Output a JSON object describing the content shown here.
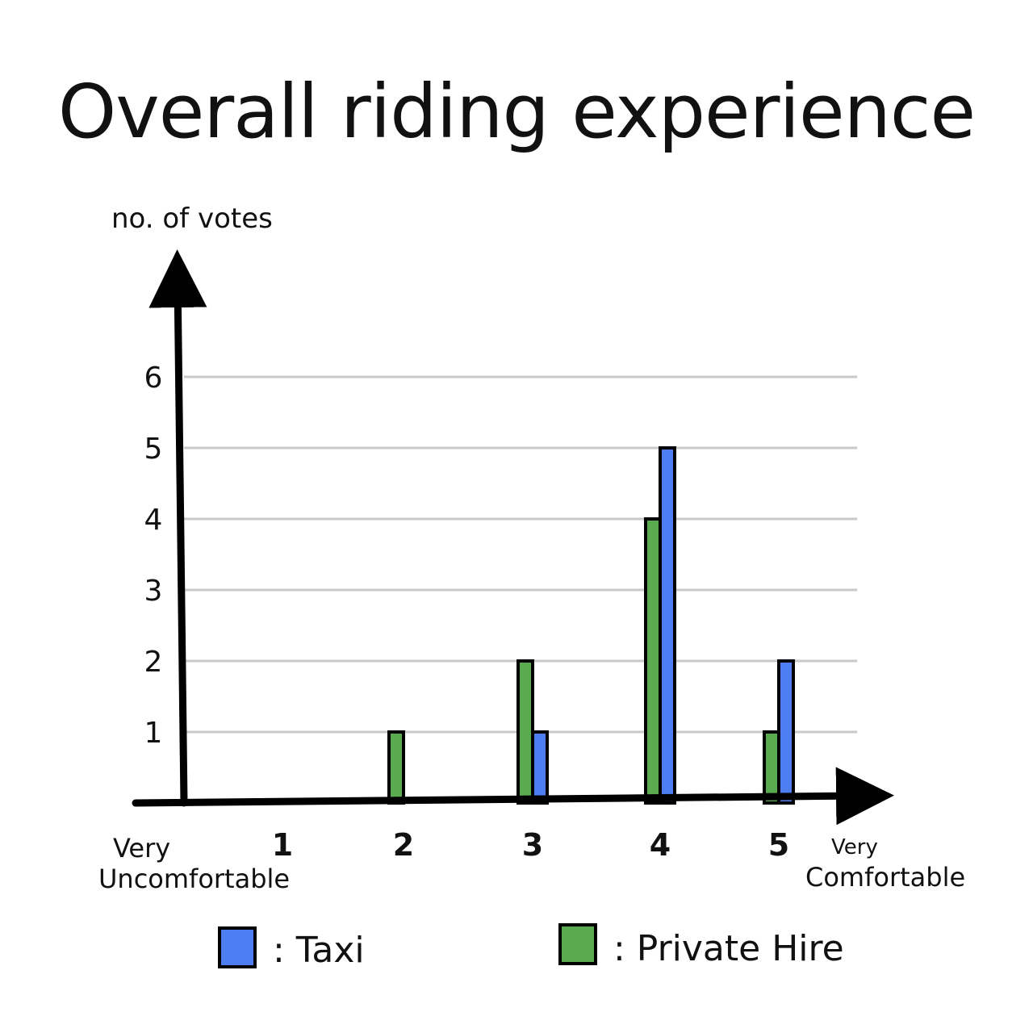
{
  "chart_data": {
    "type": "bar",
    "title": "Overall riding experience",
    "ylabel": "no. of votes",
    "categories": [
      "1",
      "2",
      "3",
      "4",
      "5"
    ],
    "x_end_labels": {
      "left": [
        "Very",
        "Uncomfortable"
      ],
      "right": [
        "Very",
        "Comfortable"
      ]
    },
    "yticks": [
      1,
      2,
      3,
      4,
      5,
      6
    ],
    "ylim": [
      0,
      6.2
    ],
    "grid": true,
    "series": [
      {
        "name": "Private Hire",
        "color": "#5aaa4f",
        "values": [
          0,
          1,
          2,
          4,
          1
        ]
      },
      {
        "name": "Taxi",
        "color": "#4d7ef2",
        "values": [
          0,
          0,
          1,
          5,
          2
        ]
      }
    ],
    "legend": {
      "placement": "bottom",
      "items": [
        {
          "label": ": Taxi",
          "color": "#4d7ef2"
        },
        {
          "label": ": Private Hire",
          "color": "#5aaa4f"
        }
      ]
    }
  }
}
